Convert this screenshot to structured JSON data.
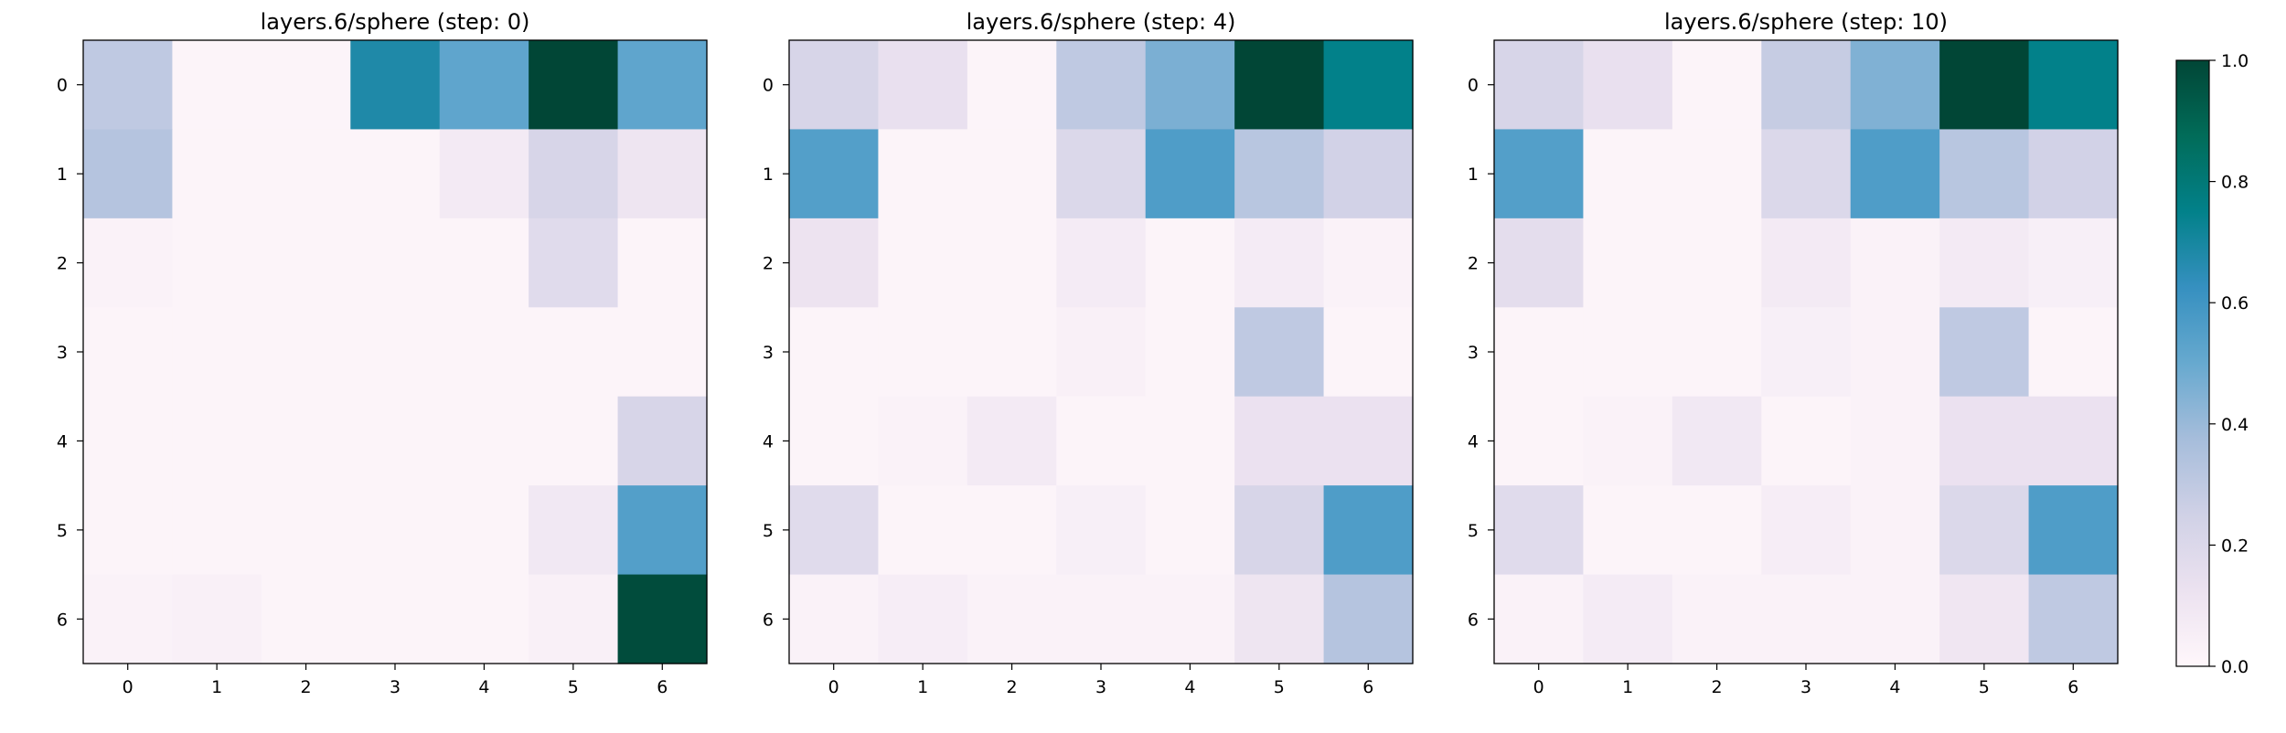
{
  "chart_data": {
    "type": "heatmap",
    "colormap": "PuBuGn",
    "colorbar": {
      "ticks": [
        "0.0",
        "0.2",
        "0.4",
        "0.6",
        "0.8",
        "1.0"
      ],
      "vmin": 0.0,
      "vmax": 1.0
    },
    "panels": [
      {
        "title": "layers.6/sphere (step: 0)",
        "x_ticks": [
          "0",
          "1",
          "2",
          "3",
          "4",
          "5",
          "6"
        ],
        "y_ticks": [
          "0",
          "1",
          "2",
          "3",
          "4",
          "5",
          "6"
        ],
        "values": [
          [
            0.3,
            0.02,
            0.02,
            0.68,
            0.52,
            1.0,
            0.52
          ],
          [
            0.33,
            0.02,
            0.02,
            0.02,
            0.08,
            0.22,
            0.11
          ],
          [
            0.03,
            0.02,
            0.02,
            0.02,
            0.02,
            0.18,
            0.02
          ],
          [
            0.02,
            0.02,
            0.02,
            0.02,
            0.02,
            0.02,
            0.02
          ],
          [
            0.02,
            0.02,
            0.02,
            0.02,
            0.02,
            0.02,
            0.22
          ],
          [
            0.02,
            0.02,
            0.02,
            0.02,
            0.02,
            0.09,
            0.55
          ],
          [
            0.03,
            0.04,
            0.02,
            0.02,
            0.02,
            0.04,
            0.98
          ]
        ]
      },
      {
        "title": "layers.6/sphere (step: 4)",
        "x_ticks": [
          "0",
          "1",
          "2",
          "3",
          "4",
          "5",
          "6"
        ],
        "y_ticks": [
          "0",
          "1",
          "2",
          "3",
          "4",
          "5",
          "6"
        ],
        "values": [
          [
            0.22,
            0.14,
            0.02,
            0.3,
            0.46,
            1.0,
            0.75
          ],
          [
            0.55,
            0.02,
            0.02,
            0.2,
            0.56,
            0.32,
            0.24
          ],
          [
            0.12,
            0.02,
            0.02,
            0.07,
            0.02,
            0.07,
            0.03
          ],
          [
            0.02,
            0.02,
            0.02,
            0.04,
            0.02,
            0.3,
            0.02
          ],
          [
            0.02,
            0.03,
            0.08,
            0.02,
            0.02,
            0.13,
            0.13
          ],
          [
            0.18,
            0.02,
            0.02,
            0.05,
            0.02,
            0.22,
            0.56
          ],
          [
            0.03,
            0.06,
            0.03,
            0.03,
            0.03,
            0.11,
            0.33
          ]
        ]
      },
      {
        "title": "layers.6/sphere (step: 10)",
        "x_ticks": [
          "0",
          "1",
          "2",
          "3",
          "4",
          "5",
          "6"
        ],
        "y_ticks": [
          "0",
          "1",
          "2",
          "3",
          "4",
          "5",
          "6"
        ],
        "values": [
          [
            0.22,
            0.14,
            0.02,
            0.28,
            0.45,
            1.0,
            0.75
          ],
          [
            0.55,
            0.02,
            0.02,
            0.2,
            0.56,
            0.32,
            0.24
          ],
          [
            0.16,
            0.02,
            0.02,
            0.08,
            0.03,
            0.08,
            0.05
          ],
          [
            0.02,
            0.02,
            0.02,
            0.05,
            0.03,
            0.3,
            0.02
          ],
          [
            0.02,
            0.03,
            0.09,
            0.02,
            0.03,
            0.13,
            0.13
          ],
          [
            0.18,
            0.02,
            0.02,
            0.06,
            0.03,
            0.2,
            0.56
          ],
          [
            0.03,
            0.07,
            0.03,
            0.03,
            0.03,
            0.1,
            0.3
          ]
        ]
      }
    ]
  }
}
